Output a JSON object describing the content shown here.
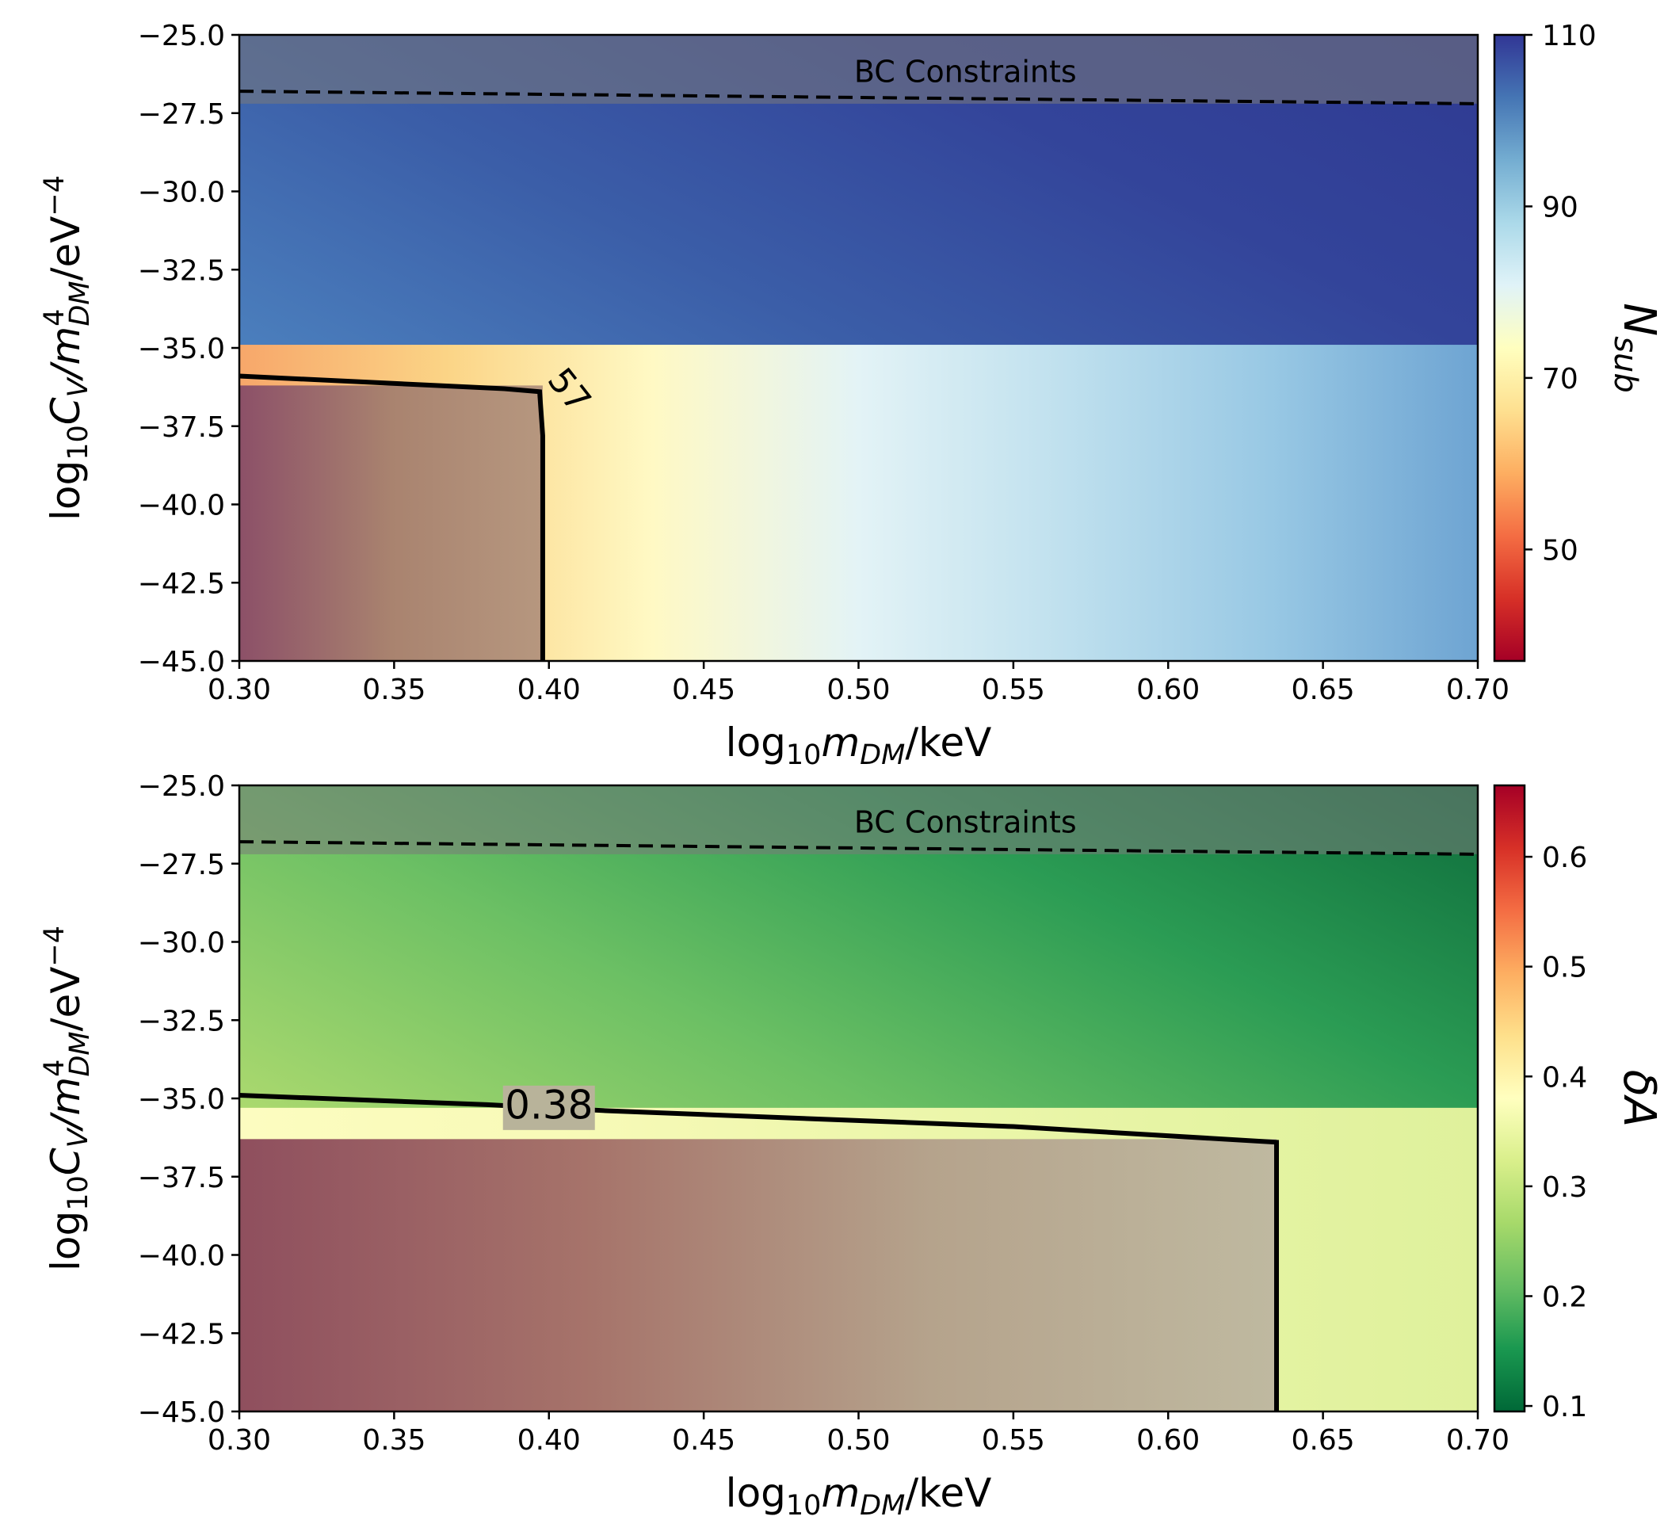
{
  "chart_data": [
    {
      "type": "heatmap",
      "xlabel_prefix": "log",
      "xlabel_sub": "10",
      "xlabel_mass": "m",
      "xlabel_mass_sub": "DM",
      "xlabel_suffix": "/keV",
      "ylabel_prefix": "log",
      "ylabel_sub": "10",
      "ylabel_coef": "C",
      "ylabel_coef_sub": "V",
      "ylabel_mid": "/m",
      "ylabel_mid_sup": "4",
      "ylabel_mid_sub": "DM",
      "ylabel_suffix": "/eV",
      "ylabel_sup": "−4",
      "xlim": [
        0.3,
        0.7
      ],
      "ylim": [
        -45.0,
        -25.0
      ],
      "xticks": [
        "0.30",
        "0.35",
        "0.40",
        "0.45",
        "0.50",
        "0.55",
        "0.60",
        "0.65",
        "0.70"
      ],
      "yticks": [
        "−25.0",
        "−27.5",
        "−30.0",
        "−32.5",
        "−35.0",
        "−37.5",
        "−40.0",
        "−42.5",
        "−45.0"
      ],
      "colorbar": {
        "label_main": "N",
        "label_sub": "sub",
        "range": [
          37,
          110
        ],
        "ticks": [
          "110",
          "90",
          "70",
          "50"
        ],
        "colormap": "RdYlBu",
        "stops": [
          "#a50026",
          "#d73027",
          "#f46d43",
          "#fdae61",
          "#fee090",
          "#ffffbf",
          "#e0f3f8",
          "#abd9e9",
          "#74add1",
          "#4575b4",
          "#313695"
        ]
      },
      "region_label": "BC Constraints",
      "bc_line": {
        "x": [
          0.3,
          0.7
        ],
        "y": [
          -26.8,
          -27.2
        ]
      },
      "contour": {
        "label": "57",
        "x": [
          0.3,
          0.385,
          0.397,
          0.398,
          0.398
        ],
        "y": [
          -35.9,
          -36.3,
          -36.4,
          -37.8,
          -45.0
        ]
      }
    },
    {
      "type": "heatmap",
      "xlabel_prefix": "log",
      "xlabel_sub": "10",
      "xlabel_mass": "m",
      "xlabel_mass_sub": "DM",
      "xlabel_suffix": "/keV",
      "ylabel_prefix": "log",
      "ylabel_sub": "10",
      "ylabel_coef": "C",
      "ylabel_coef_sub": "V",
      "ylabel_mid": "/m",
      "ylabel_mid_sup": "4",
      "ylabel_mid_sub": "DM",
      "ylabel_suffix": "/eV",
      "ylabel_sup": "−4",
      "xlim": [
        0.3,
        0.7
      ],
      "ylim": [
        -45.0,
        -25.0
      ],
      "xticks": [
        "0.30",
        "0.35",
        "0.40",
        "0.45",
        "0.50",
        "0.55",
        "0.60",
        "0.65",
        "0.70"
      ],
      "yticks": [
        "−25.0",
        "−27.5",
        "−30.0",
        "−32.5",
        "−35.0",
        "−37.5",
        "−40.0",
        "−42.5",
        "−45.0"
      ],
      "colorbar": {
        "label_main": "δA",
        "label_sub": "",
        "range": [
          0.095,
          0.665
        ],
        "ticks": [
          "0.6",
          "0.5",
          "0.4",
          "0.3",
          "0.2",
          "0.1"
        ],
        "colormap": "RdYlGn_r",
        "stops": [
          "#006837",
          "#1a9850",
          "#66bd63",
          "#a6d96a",
          "#d9ef8b",
          "#ffffbf",
          "#fee08b",
          "#fdae61",
          "#f46d43",
          "#d73027",
          "#a50026"
        ]
      },
      "region_label": "BC Constraints",
      "bc_line": {
        "x": [
          0.3,
          0.7
        ],
        "y": [
          -26.8,
          -27.2
        ]
      },
      "contour": {
        "label": "0.38",
        "x": [
          0.3,
          0.38,
          0.42,
          0.55,
          0.635,
          0.635
        ],
        "y": [
          -34.9,
          -35.2,
          -35.4,
          -35.9,
          -36.4,
          -45.0
        ]
      }
    }
  ]
}
